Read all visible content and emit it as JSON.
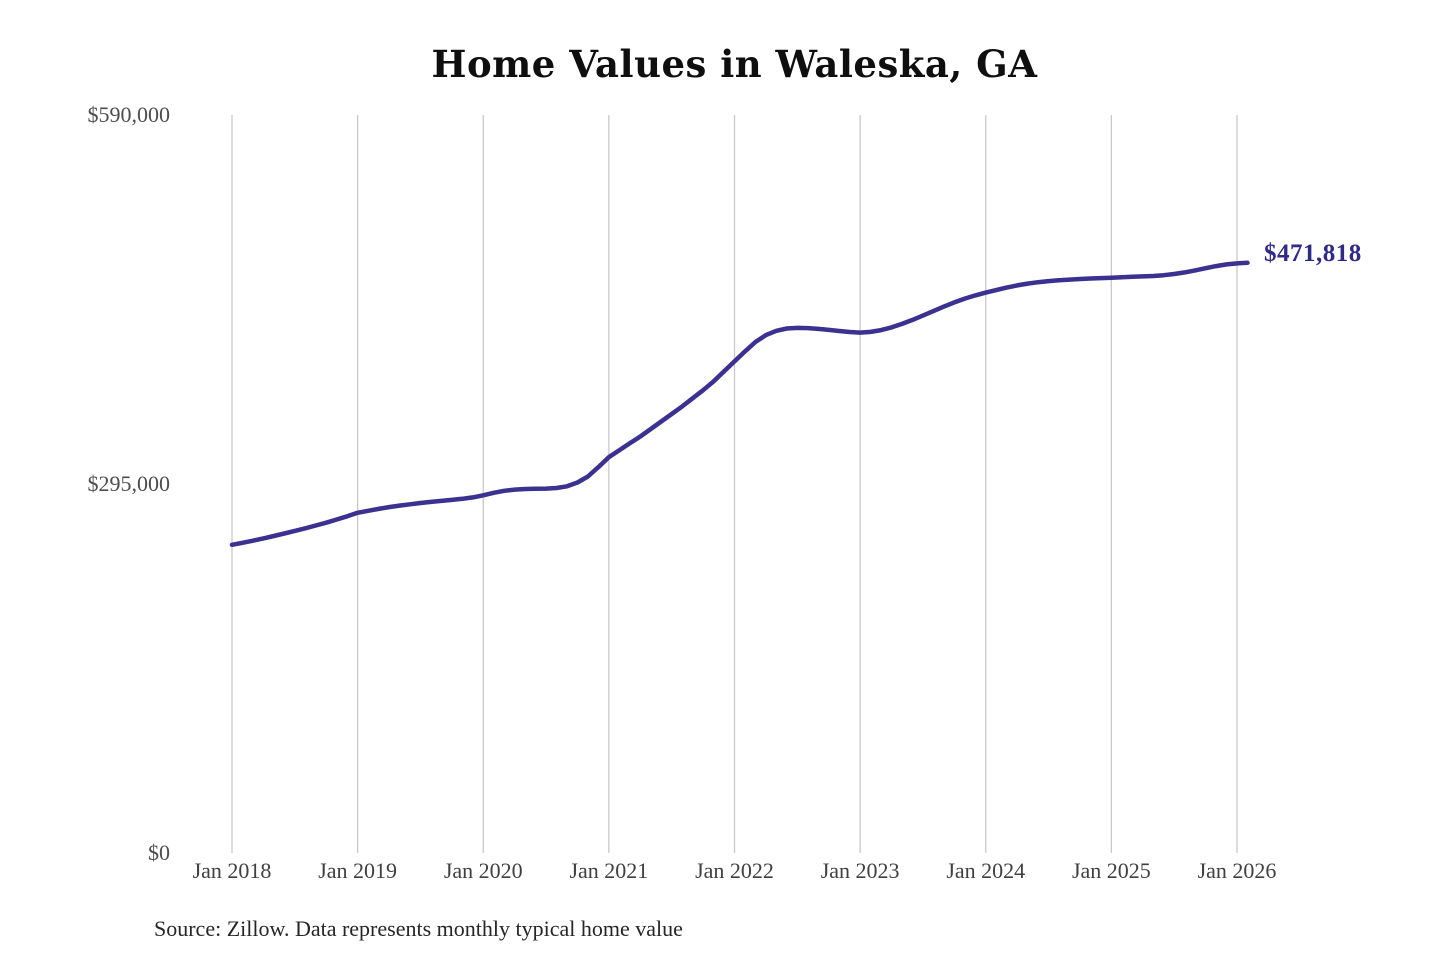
{
  "page": {
    "title": "Home Values in Waleska, GA",
    "latest_value_label": "$471,818",
    "source_note": "Source: Zillow. Data represents monthly typical home value"
  },
  "colors": {
    "line": "#3a3191",
    "value_label": "#2f2a85",
    "grid": "#c9c9c9",
    "tick_text": "#4d4d4d",
    "title_text": "#0f0f0f",
    "background": "#ffffff"
  },
  "chart_data": {
    "type": "line",
    "title": "Home Values in Waleska, GA",
    "xlabel": "",
    "ylabel": "",
    "ylim": [
      0,
      590000
    ],
    "grid": "vertical-only",
    "legend": "none",
    "y_ticks": [
      {
        "value": 0,
        "label": "$0"
      },
      {
        "value": 295000,
        "label": "$295,000"
      },
      {
        "value": 590000,
        "label": "$590,000"
      }
    ],
    "x_tick_labels": [
      "Jan 2018",
      "Jan 2019",
      "Jan 2020",
      "Jan 2021",
      "Jan 2022",
      "Jan 2023",
      "Jan 2024",
      "Jan 2025",
      "Jan 2026"
    ],
    "series": [
      {
        "name": "Typical home value",
        "start_month": "2018-01",
        "frequency": "monthly",
        "final_value": 471818,
        "values": [
          246400,
          248000,
          249700,
          251500,
          253400,
          255400,
          257500,
          259600,
          261800,
          264100,
          266600,
          269200,
          272000,
          273600,
          275100,
          276500,
          277700,
          278800,
          279800,
          280700,
          281500,
          282300,
          283200,
          284300,
          286000,
          288000,
          289600,
          290500,
          291000,
          291200,
          291300,
          291800,
          293200,
          296200,
          301000,
          308500,
          316500,
          322000,
          327500,
          333000,
          339000,
          345000,
          351000,
          357000,
          363500,
          370000,
          377000,
          385000,
          393000,
          401000,
          408500,
          414000,
          417500,
          419300,
          419800,
          419600,
          419000,
          418200,
          417300,
          416500,
          416000,
          416600,
          418000,
          420200,
          423000,
          426200,
          429600,
          433200,
          436800,
          440200,
          443200,
          445800,
          448000,
          450000,
          452000,
          453800,
          455200,
          456300,
          457200,
          457900,
          458400,
          458900,
          459300,
          459600,
          459900,
          460300,
          460700,
          461000,
          461300,
          461900,
          462900,
          464200,
          465800,
          467500,
          469200,
          470600,
          471400,
          471818
        ]
      }
    ],
    "annotation": {
      "text": "$471,818",
      "position": "end-of-line"
    }
  }
}
